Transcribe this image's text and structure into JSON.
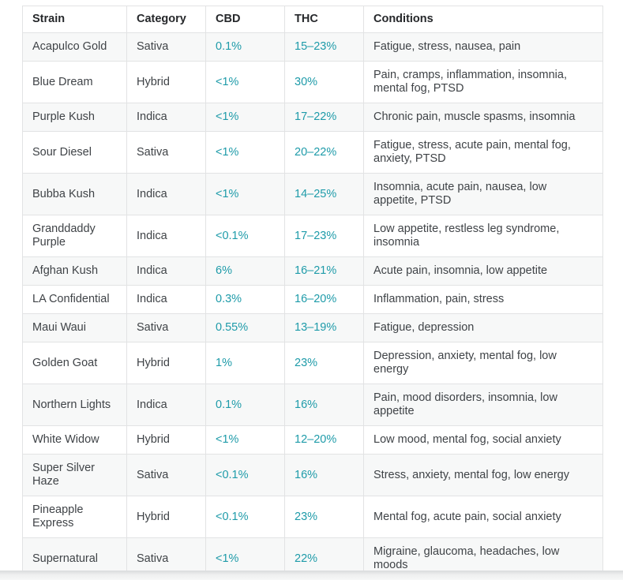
{
  "chart_data": {
    "type": "table",
    "columns": [
      "Strain",
      "Category",
      "CBD",
      "THC",
      "Conditions"
    ],
    "rows": [
      {
        "strain": "Acapulco Gold",
        "category": "Sativa",
        "cbd": "0.1%",
        "thc": "15–23%",
        "conditions": "Fatigue, stress, nausea, pain"
      },
      {
        "strain": "Blue Dream",
        "category": "Hybrid",
        "cbd": "<1%",
        "thc": "30%",
        "conditions": "Pain, cramps, inflammation, insomnia, mental fog, PTSD"
      },
      {
        "strain": "Purple Kush",
        "category": "Indica",
        "cbd": "<1%",
        "thc": "17–22%",
        "conditions": "Chronic pain, muscle spasms, insomnia"
      },
      {
        "strain": "Sour Diesel",
        "category": "Sativa",
        "cbd": "<1%",
        "thc": "20–22%",
        "conditions": "Fatigue, stress, acute pain, mental fog, anxiety, PTSD"
      },
      {
        "strain": "Bubba Kush",
        "category": "Indica",
        "cbd": "<1%",
        "thc": "14–25%",
        "conditions": "Insomnia, acute pain, nausea, low appetite, PTSD"
      },
      {
        "strain": "Granddaddy Purple",
        "category": "Indica",
        "cbd": "<0.1%",
        "thc": "17–23%",
        "conditions": "Low appetite, restless leg syndrome, insomnia"
      },
      {
        "strain": "Afghan Kush",
        "category": "Indica",
        "cbd": "6%",
        "thc": "16–21%",
        "conditions": "Acute pain, insomnia, low appetite"
      },
      {
        "strain": "LA Confidential",
        "category": "Indica",
        "cbd": "0.3%",
        "thc": "16–20%",
        "conditions": "Inflammation, pain, stress"
      },
      {
        "strain": "Maui Waui",
        "category": "Sativa",
        "cbd": "0.55%",
        "thc": "13–19%",
        "conditions": "Fatigue, depression"
      },
      {
        "strain": "Golden Goat",
        "category": "Hybrid",
        "cbd": "1%",
        "thc": "23%",
        "conditions": "Depression, anxiety, mental fog, low energy"
      },
      {
        "strain": "Northern Lights",
        "category": "Indica",
        "cbd": "0.1%",
        "thc": "16%",
        "conditions": "Pain, mood disorders, insomnia, low appetite"
      },
      {
        "strain": "White Widow",
        "category": "Hybrid",
        "cbd": "<1%",
        "thc": "12–20%",
        "conditions": "Low mood, mental fog, social anxiety"
      },
      {
        "strain": "Super Silver Haze",
        "category": "Sativa",
        "cbd": "<0.1%",
        "thc": "16%",
        "conditions": "Stress, anxiety, mental fog, low energy"
      },
      {
        "strain": "Pineapple Express",
        "category": "Hybrid",
        "cbd": "<0.1%",
        "thc": "23%",
        "conditions": "Mental fog, acute pain, social anxiety"
      },
      {
        "strain": "Supernatural",
        "category": "Sativa",
        "cbd": "<1%",
        "thc": "22%",
        "conditions": "Migraine, glaucoma, headaches, low moods"
      }
    ],
    "colors": {
      "value_teal": "#1e9ba9",
      "header_text": "#26282b",
      "body_text": "#3f4347",
      "zebra_row": "#f7f8f8",
      "border": "#e2e3e4"
    },
    "layout_hints": {
      "zebra_striping": "odd body rows shaded",
      "teal_columns": [
        "CBD",
        "THC"
      ]
    }
  }
}
